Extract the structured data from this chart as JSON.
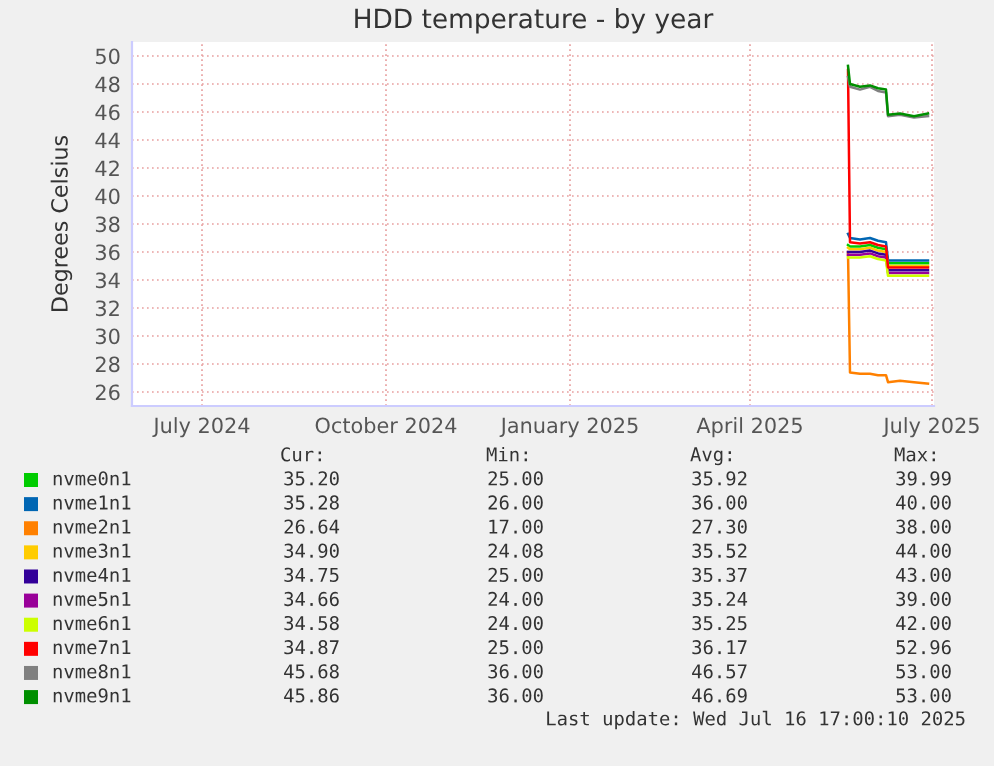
{
  "chart_data": {
    "type": "line",
    "title": "HDD temperature - by year",
    "ylabel": "Degrees Celsius",
    "x": [
      "2025-05-20",
      "2025-05-21",
      "2025-05-26",
      "2025-05-31",
      "2025-06-04",
      "2025-06-08",
      "2025-06-09",
      "2025-06-15",
      "2025-06-22",
      "2025-06-29"
    ],
    "xlim": [
      "2024-05-27",
      "2025-07-02"
    ],
    "xticks": [
      {
        "value": "2024-07-01",
        "label": "July 2024"
      },
      {
        "value": "2024-10-01",
        "label": "October 2024"
      },
      {
        "value": "2025-01-01",
        "label": "January 2025"
      },
      {
        "value": "2025-04-01",
        "label": "April 2025"
      },
      {
        "value": "2025-07-01",
        "label": "July 2025"
      }
    ],
    "ylim": [
      25,
      51
    ],
    "yticks": [
      26,
      28,
      30,
      32,
      34,
      36,
      38,
      40,
      42,
      44,
      46,
      48,
      50
    ],
    "grid": true,
    "legend": "bottom",
    "marker": "none",
    "line_style": "solid",
    "series": [
      {
        "name": "nvme0n1",
        "color": "#00cc00",
        "values": [
          36.5,
          36.4,
          36.4,
          36.5,
          36.3,
          36.2,
          35.2,
          35.2,
          35.2,
          35.2
        ]
      },
      {
        "name": "nvme1n1",
        "color": "#0066b3",
        "values": [
          37.3,
          37.0,
          36.9,
          37.0,
          36.8,
          36.7,
          35.4,
          35.4,
          35.4,
          35.4
        ]
      },
      {
        "name": "nvme2n1",
        "color": "#ff8000",
        "values": [
          36.0,
          27.4,
          27.3,
          27.3,
          27.2,
          27.2,
          26.7,
          26.8,
          26.7,
          26.6
        ]
      },
      {
        "name": "nvme3n1",
        "color": "#ffcc00",
        "values": [
          36.3,
          36.2,
          36.2,
          36.3,
          36.1,
          36.0,
          35.0,
          35.0,
          35.0,
          35.0
        ]
      },
      {
        "name": "nvme4n1",
        "color": "#330099",
        "values": [
          36.0,
          36.0,
          36.0,
          36.1,
          35.9,
          35.8,
          34.7,
          34.7,
          34.7,
          34.7
        ]
      },
      {
        "name": "nvme5n1",
        "color": "#990099",
        "values": [
          35.8,
          35.8,
          35.8,
          35.9,
          35.7,
          35.6,
          34.5,
          34.5,
          34.5,
          34.5
        ]
      },
      {
        "name": "nvme6n1",
        "color": "#ccff00",
        "values": [
          35.6,
          35.6,
          35.6,
          35.7,
          35.5,
          35.4,
          34.3,
          34.3,
          34.3,
          34.3
        ]
      },
      {
        "name": "nvme7n1",
        "color": "#ff0000",
        "values": [
          49.0,
          36.7,
          36.6,
          36.7,
          36.5,
          36.4,
          34.9,
          34.9,
          34.9,
          34.9
        ]
      },
      {
        "name": "nvme8n1",
        "color": "#808080",
        "values": [
          48.5,
          47.8,
          47.6,
          47.8,
          47.5,
          47.4,
          45.7,
          45.8,
          45.6,
          45.7
        ]
      },
      {
        "name": "nvme9n1",
        "color": "#008f00",
        "values": [
          49.3,
          48.0,
          47.8,
          47.9,
          47.7,
          47.6,
          45.8,
          45.9,
          45.7,
          45.9
        ]
      }
    ],
    "annotations": [
      "Cur:",
      "Min:",
      "Avg:",
      "Max:",
      "35.20",
      "25.00",
      "35.92",
      "39.99",
      "35.28",
      "26.00",
      "36.00",
      "40.00",
      "26.64",
      "17.00",
      "27.30",
      "38.00",
      "34.90",
      "24.08",
      "35.52",
      "44.00",
      "34.75",
      "25.00",
      "35.37",
      "43.00",
      "34.66",
      "24.00",
      "35.24",
      "39.00",
      "34.58",
      "24.00",
      "35.25",
      "42.00",
      "34.87",
      "25.00",
      "36.17",
      "52.96",
      "45.68",
      "36.00",
      "46.57",
      "53.00",
      "45.86",
      "36.00",
      "46.69",
      "53.00",
      "Last update: Wed Jul 16 17:00:10 2025"
    ]
  }
}
